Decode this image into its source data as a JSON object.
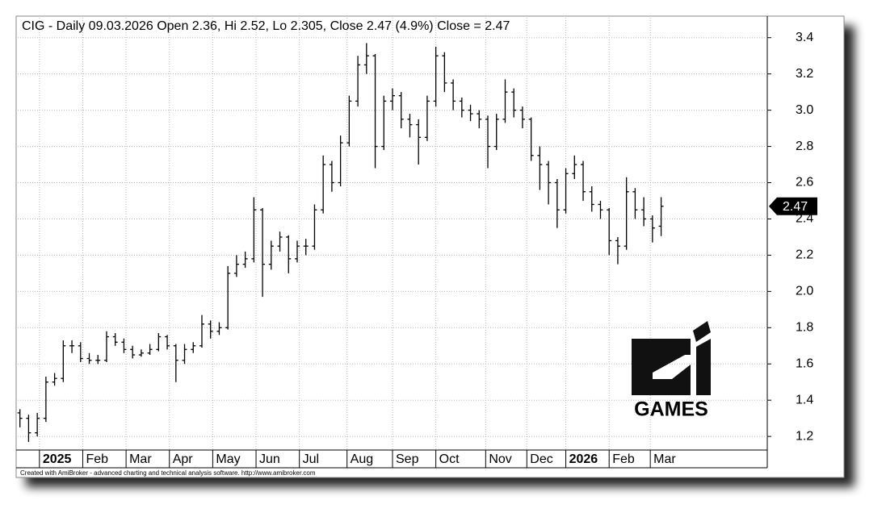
{
  "chart_data": {
    "type": "ohlc",
    "title": "CIG - Daily 09.03.2026 Open 2.36, Hi 2.52, Lo 2.305, Close 2.47 (4.9%) Close = 2.47",
    "footer": "Created with AmiBroker - advanced charting and technical analysis software. http://www.amibroker.com",
    "logo_text": "GAMES",
    "color": "#000000",
    "grid": true,
    "x": [
      0,
      4,
      8,
      12,
      16,
      20,
      24,
      28,
      32,
      36,
      40,
      44,
      48,
      52,
      56,
      60,
      64,
      68,
      72,
      76,
      80,
      84,
      88,
      92,
      96,
      100,
      104,
      108,
      112,
      116,
      120,
      124,
      128,
      132,
      136,
      140,
      144,
      148,
      152,
      156,
      160,
      164,
      168,
      172,
      176,
      180,
      184,
      188,
      192,
      196,
      200,
      204,
      208,
      212,
      216,
      220,
      224,
      228,
      232,
      236,
      240,
      244,
      248,
      252,
      256,
      260,
      264,
      268,
      272,
      276,
      280,
      284,
      288,
      292,
      296
    ],
    "open": [
      1.33,
      1.3,
      1.22,
      1.3,
      1.5,
      1.52,
      1.7,
      1.7,
      1.63,
      1.62,
      1.62,
      1.75,
      1.72,
      1.68,
      1.65,
      1.66,
      1.68,
      1.75,
      1.7,
      1.62,
      1.68,
      1.7,
      1.82,
      1.78,
      1.8,
      2.1,
      2.15,
      2.18,
      2.45,
      2.15,
      2.25,
      2.3,
      2.18,
      2.25,
      2.25,
      2.45,
      2.7,
      2.6,
      2.82,
      3.05,
      3.25,
      3.3,
      2.8,
      3.05,
      3.08,
      2.95,
      2.92,
      2.85,
      3.05,
      3.3,
      3.15,
      3.05,
      3.0,
      2.98,
      2.95,
      2.8,
      2.95,
      3.1,
      3.0,
      2.95,
      2.75,
      2.7,
      2.6,
      2.45,
      2.65,
      2.7,
      2.55,
      2.48,
      2.45,
      2.28,
      2.25,
      2.55,
      2.45,
      2.4,
      2.36
    ],
    "high": [
      1.35,
      1.32,
      1.33,
      1.53,
      1.55,
      1.73,
      1.73,
      1.72,
      1.66,
      1.65,
      1.78,
      1.77,
      1.74,
      1.7,
      1.68,
      1.71,
      1.77,
      1.76,
      1.71,
      1.71,
      1.72,
      1.87,
      1.84,
      1.83,
      2.14,
      2.2,
      2.22,
      2.52,
      2.46,
      2.28,
      2.33,
      2.31,
      2.28,
      2.29,
      2.48,
      2.75,
      2.72,
      2.86,
      3.08,
      3.3,
      3.37,
      3.31,
      3.08,
      3.12,
      3.1,
      2.98,
      2.95,
      3.08,
      3.35,
      3.32,
      3.17,
      3.07,
      3.03,
      3.0,
      2.97,
      2.98,
      3.17,
      3.12,
      3.02,
      2.96,
      2.8,
      2.72,
      2.62,
      2.68,
      2.75,
      2.72,
      2.58,
      2.5,
      2.46,
      2.3,
      2.63,
      2.57,
      2.52,
      2.42,
      2.52
    ],
    "low": [
      1.25,
      1.17,
      1.2,
      1.28,
      1.48,
      1.5,
      1.66,
      1.61,
      1.6,
      1.6,
      1.61,
      1.7,
      1.66,
      1.63,
      1.64,
      1.65,
      1.67,
      1.68,
      1.5,
      1.6,
      1.66,
      1.69,
      1.74,
      1.76,
      1.79,
      2.08,
      2.13,
      2.16,
      1.97,
      2.12,
      2.22,
      2.1,
      2.16,
      2.2,
      2.23,
      2.43,
      2.55,
      2.58,
      2.8,
      3.02,
      3.2,
      2.68,
      2.78,
      3.0,
      2.9,
      2.85,
      2.7,
      2.83,
      3.02,
      3.1,
      3.0,
      2.96,
      2.94,
      2.9,
      2.68,
      2.78,
      2.93,
      2.96,
      2.9,
      2.72,
      2.56,
      2.48,
      2.35,
      2.43,
      2.62,
      2.5,
      2.44,
      2.4,
      2.2,
      2.15,
      2.23,
      2.4,
      2.36,
      2.27,
      2.305
    ],
    "close": [
      1.3,
      1.22,
      1.3,
      1.5,
      1.52,
      1.7,
      1.7,
      1.63,
      1.62,
      1.62,
      1.75,
      1.72,
      1.68,
      1.65,
      1.66,
      1.68,
      1.75,
      1.7,
      1.62,
      1.68,
      1.7,
      1.82,
      1.78,
      1.8,
      2.1,
      2.15,
      2.18,
      2.45,
      2.15,
      2.25,
      2.3,
      2.18,
      2.25,
      2.25,
      2.45,
      2.7,
      2.6,
      2.82,
      3.05,
      3.25,
      3.3,
      2.8,
      3.05,
      3.08,
      2.95,
      2.92,
      2.85,
      3.05,
      3.3,
      3.15,
      3.05,
      3.0,
      2.98,
      2.95,
      2.8,
      2.95,
      3.1,
      3.0,
      2.95,
      2.75,
      2.7,
      2.6,
      2.45,
      2.65,
      2.7,
      2.55,
      2.48,
      2.45,
      2.28,
      2.25,
      2.55,
      2.45,
      2.4,
      2.35,
      2.47
    ],
    "xlim": [
      -1,
      345
    ],
    "xticks": [
      {
        "value": 9,
        "label": "2025"
      },
      {
        "value": 29,
        "label": "Feb"
      },
      {
        "value": 49,
        "label": "Mar"
      },
      {
        "value": 69,
        "label": "Apr"
      },
      {
        "value": 89,
        "label": "May"
      },
      {
        "value": 109,
        "label": "Jun"
      },
      {
        "value": 129,
        "label": "Jul"
      },
      {
        "value": 151,
        "label": "Aug"
      },
      {
        "value": 172,
        "label": "Sep"
      },
      {
        "value": 192,
        "label": "Oct"
      },
      {
        "value": 215,
        "label": "Nov"
      },
      {
        "value": 234,
        "label": "Dec"
      },
      {
        "value": 252,
        "label": "2026"
      },
      {
        "value": 272,
        "label": "Feb"
      },
      {
        "value": 291,
        "label": "Mar"
      }
    ],
    "ylim": [
      1.125,
      3.51
    ],
    "yticks": [
      1.2,
      1.4,
      1.6,
      1.8,
      {
        "value": 2,
        "label": "2.0"
      },
      2.2,
      2.4,
      2.6,
      2.8,
      {
        "value": 3,
        "label": "3.0"
      },
      3.2,
      3.4
    ]
  }
}
